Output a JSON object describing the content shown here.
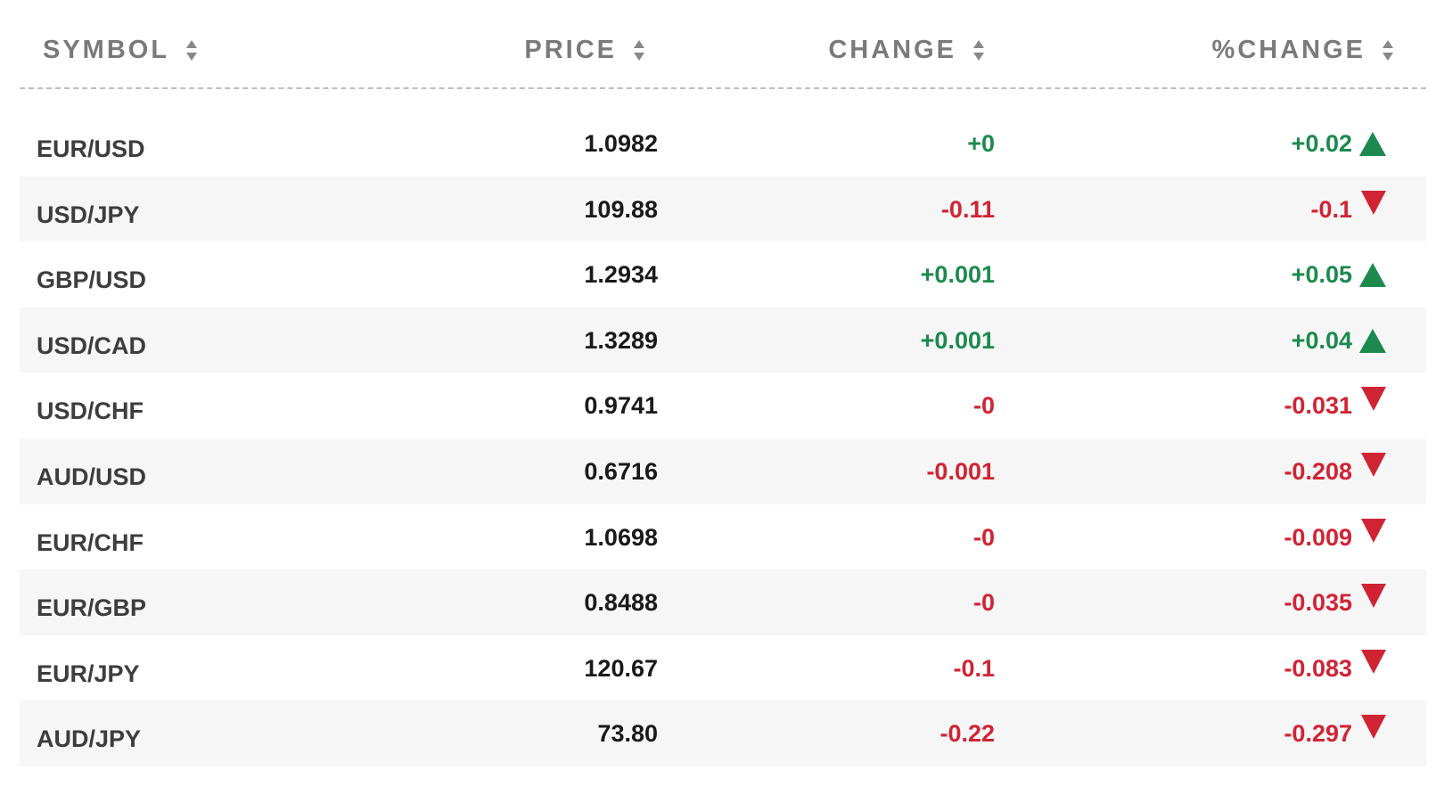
{
  "colors": {
    "positive": "#1c8a4e",
    "negative": "#d02434",
    "header_text": "#7a7a7a",
    "row_alt_bg": "#f6f6f6"
  },
  "header": {
    "symbol": "SYMBOL",
    "price": "PRICE",
    "change": "CHANGE",
    "pct_change": "%CHANGE",
    "sort_icon": "sort-updown-icon"
  },
  "rows": [
    {
      "symbol": "EUR/USD",
      "price": "1.0982",
      "change": "+0",
      "pct_change": "+0.02",
      "direction": "up"
    },
    {
      "symbol": "USD/JPY",
      "price": "109.88",
      "change": "-0.11",
      "pct_change": "-0.1",
      "direction": "down"
    },
    {
      "symbol": "GBP/USD",
      "price": "1.2934",
      "change": "+0.001",
      "pct_change": "+0.05",
      "direction": "up"
    },
    {
      "symbol": "USD/CAD",
      "price": "1.3289",
      "change": "+0.001",
      "pct_change": "+0.04",
      "direction": "up"
    },
    {
      "symbol": "USD/CHF",
      "price": "0.9741",
      "change": "-0",
      "pct_change": "-0.031",
      "direction": "down"
    },
    {
      "symbol": "AUD/USD",
      "price": "0.6716",
      "change": "-0.001",
      "pct_change": "-0.208",
      "direction": "down"
    },
    {
      "symbol": "EUR/CHF",
      "price": "1.0698",
      "change": "-0",
      "pct_change": "-0.009",
      "direction": "down"
    },
    {
      "symbol": "EUR/GBP",
      "price": "0.8488",
      "change": "-0",
      "pct_change": "-0.035",
      "direction": "down"
    },
    {
      "symbol": "EUR/JPY",
      "price": "120.67",
      "change": "-0.1",
      "pct_change": "-0.083",
      "direction": "down"
    },
    {
      "symbol": "AUD/JPY",
      "price": "73.80",
      "change": "-0.22",
      "pct_change": "-0.297",
      "direction": "down"
    }
  ]
}
